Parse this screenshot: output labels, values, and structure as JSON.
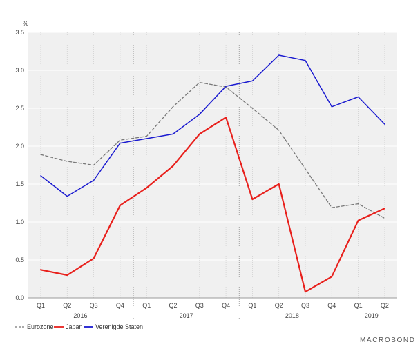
{
  "chart_data": {
    "type": "line",
    "unit": "%",
    "categories": [
      "Q1",
      "Q2",
      "Q3",
      "Q4",
      "Q1",
      "Q2",
      "Q3",
      "Q4",
      "Q1",
      "Q2",
      "Q3",
      "Q4",
      "Q1",
      "Q2"
    ],
    "year_labels": [
      {
        "label": "2016",
        "start_index": 0,
        "end_index": 3
      },
      {
        "label": "2017",
        "start_index": 4,
        "end_index": 7
      },
      {
        "label": "2018",
        "start_index": 8,
        "end_index": 11
      },
      {
        "label": "2019",
        "start_index": 12,
        "end_index": 13
      }
    ],
    "ylim": [
      0,
      3.5
    ],
    "yticks": [
      "0.0",
      "0.5",
      "1.0",
      "1.5",
      "2.0",
      "2.5",
      "3.0",
      "3.5"
    ],
    "grid": true,
    "legend_position": "bottom-left",
    "series": [
      {
        "name": "Eurozone",
        "color": "#777777",
        "style": "dashed",
        "values": [
          1.89,
          1.8,
          1.75,
          2.08,
          2.13,
          2.52,
          2.84,
          2.78,
          2.5,
          2.21,
          1.7,
          1.19,
          1.24,
          1.05
        ]
      },
      {
        "name": "Japan",
        "color": "#e8201c",
        "style": "solid",
        "values": [
          0.37,
          0.3,
          0.52,
          1.22,
          1.45,
          1.74,
          2.16,
          2.38,
          1.3,
          1.5,
          0.08,
          0.28,
          1.02,
          1.18
        ]
      },
      {
        "name": "Verenigde Staten",
        "color": "#1a1ad0",
        "style": "solid",
        "values": [
          1.61,
          1.34,
          1.55,
          2.04,
          2.1,
          2.16,
          2.42,
          2.79,
          2.86,
          3.2,
          3.13,
          2.52,
          2.65,
          2.29
        ]
      }
    ]
  },
  "brand": {
    "text": "MACROBOND"
  }
}
